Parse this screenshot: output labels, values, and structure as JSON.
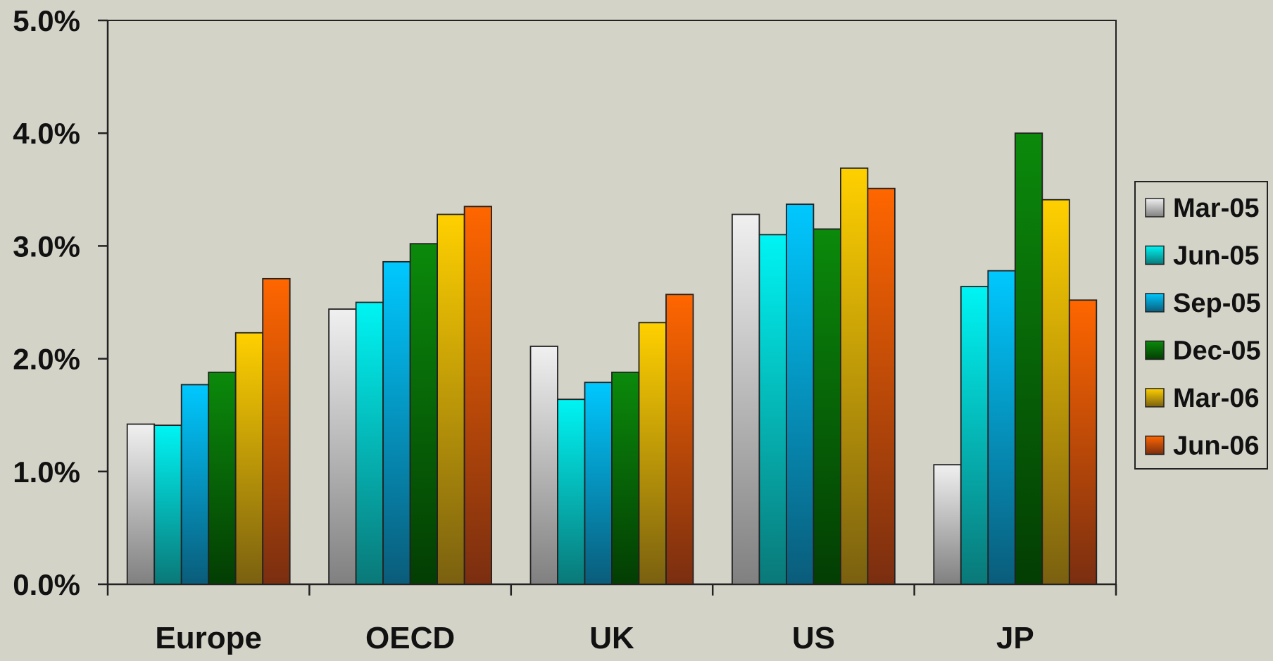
{
  "chart_data": {
    "type": "bar",
    "title": "",
    "xlabel": "",
    "ylabel": "",
    "categories": [
      "Europe",
      "OECD",
      "UK",
      "US",
      "JP"
    ],
    "ylim": [
      0,
      5
    ],
    "yticks": [
      0,
      1,
      2,
      3,
      4,
      5
    ],
    "ytick_labels": [
      "0.0%",
      "1.0%",
      "2.0%",
      "3.0%",
      "4.0%",
      "5.0%"
    ],
    "grid": false,
    "legend_position": "right",
    "series": [
      {
        "name": "Mar-05",
        "values": [
          1.42,
          2.44,
          2.11,
          3.28,
          1.06
        ],
        "color": "#f0f0f0",
        "dark": "#808080"
      },
      {
        "name": "Jun-05",
        "values": [
          1.41,
          2.5,
          1.64,
          3.1,
          2.64
        ],
        "color": "#00f4f4",
        "dark": "#0a7878"
      },
      {
        "name": "Sep-05",
        "values": [
          1.77,
          2.86,
          1.79,
          3.37,
          2.78
        ],
        "color": "#00c8ff",
        "dark": "#0a5c7a"
      },
      {
        "name": "Dec-05",
        "values": [
          1.88,
          3.02,
          1.88,
          3.15,
          4.0
        ],
        "color": "#0b8a0b",
        "dark": "#033d03"
      },
      {
        "name": "Mar-06",
        "values": [
          2.23,
          3.28,
          2.32,
          3.69,
          3.41
        ],
        "color": "#ffd000",
        "dark": "#7a6010"
      },
      {
        "name": "Jun-06",
        "values": [
          2.71,
          3.35,
          2.57,
          3.51,
          2.52
        ],
        "color": "#ff6600",
        "dark": "#7a2e10"
      }
    ]
  }
}
